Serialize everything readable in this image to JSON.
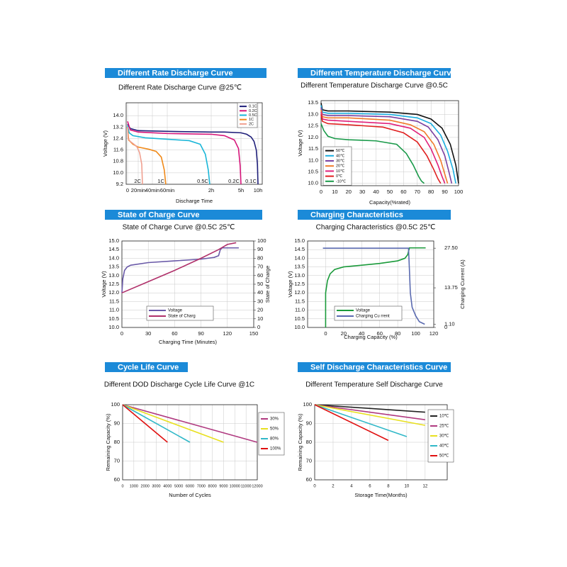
{
  "chart_data": [
    {
      "type": "line",
      "title": "Different Rate Discharge Curve",
      "subtitle": "Different Rate Discharge Curve @25℃",
      "xlabel": "Discharge Time",
      "ylabel": "Voltage (V)",
      "grid": true,
      "legend": "top-right",
      "end_labels": true,
      "ylim": [
        9.2,
        14.9
      ],
      "yticks": [
        9.2,
        {
          "value": 10.0,
          "label": "10.0"
        },
        10.8,
        11.6,
        12.4,
        13.2,
        {
          "value": 14.0,
          "label": "14.0"
        }
      ],
      "xlim": [
        0,
        600
      ],
      "xticks": [
        0,
        {
          "value": 20,
          "label": "20min"
        },
        {
          "value": 40,
          "label": "40min"
        },
        {
          "value": 60,
          "label": "60min"
        },
        {
          "value": 120,
          "label": "2h"
        },
        {
          "value": 300,
          "label": "5h"
        },
        {
          "value": 600,
          "label": "10h"
        }
      ],
      "series": [
        {
          "name": "0.1C",
          "color": "#1f1f7a",
          "x": [
            0,
            5,
            20,
            60,
            120,
            200,
            300,
            400,
            480,
            530,
            570,
            590,
            600
          ],
          "values": [
            13.4,
            13.1,
            12.95,
            12.9,
            12.85,
            12.85,
            12.8,
            12.7,
            12.5,
            12.2,
            11.6,
            10.6,
            9.2
          ]
        },
        {
          "name": "0.2C",
          "color": "#d6157a",
          "x": [
            0,
            5,
            20,
            60,
            120,
            200,
            260,
            285,
            295,
            300
          ],
          "values": [
            13.6,
            13.0,
            12.85,
            12.75,
            12.7,
            12.6,
            12.3,
            11.7,
            10.5,
            9.2
          ]
        },
        {
          "name": "0.5C",
          "color": "#19b6d8",
          "x": [
            0,
            3,
            10,
            30,
            60,
            90,
            105,
            112,
            116,
            118
          ],
          "values": [
            13.3,
            12.8,
            12.6,
            12.45,
            12.35,
            12.25,
            12.0,
            11.3,
            10.2,
            9.2
          ]
        },
        {
          "name": "1C",
          "color": "#f08a1a",
          "x": [
            0,
            2,
            10,
            20,
            35,
            45,
            52,
            56,
            58
          ],
          "values": [
            13.2,
            12.3,
            12.0,
            11.8,
            11.65,
            11.5,
            11.1,
            10.2,
            9.2
          ]
        },
        {
          "name": "2C",
          "color": "#f0a090",
          "x": [
            0,
            1,
            5,
            12,
            18,
            22,
            25,
            26
          ],
          "values": [
            13.2,
            12.4,
            12.2,
            12.0,
            11.8,
            11.4,
            10.6,
            9.2
          ]
        }
      ]
    },
    {
      "type": "line",
      "title": "Different Temperature Discharge Curve",
      "subtitle": "Different Temperature Discharge Curve @0.5C",
      "xlabel": "Capacity(%rated)",
      "ylabel": "Voltage (V)",
      "grid": true,
      "legend": "bottom-left",
      "ylim": [
        9.9,
        13.6
      ],
      "yticks": [
        {
          "value": 10.0,
          "label": "10.0"
        },
        10.5,
        {
          "value": 11.0,
          "label": "11.0"
        },
        11.5,
        {
          "value": 12.0,
          "label": "12.0"
        },
        12.5,
        {
          "value": 13.0,
          "label": "13.0"
        },
        13.5
      ],
      "xlim": [
        0,
        100
      ],
      "xticks": [
        0,
        10,
        20,
        30,
        40,
        50,
        60,
        70,
        80,
        90,
        100
      ],
      "series": [
        {
          "name": "50℃",
          "color": "#111111",
          "x": [
            0,
            1,
            5,
            20,
            50,
            70,
            80,
            88,
            94,
            98,
            100
          ],
          "values": [
            13.5,
            13.2,
            13.15,
            13.15,
            13.1,
            13.0,
            12.8,
            12.4,
            11.7,
            10.8,
            10.0
          ]
        },
        {
          "name": "40℃",
          "color": "#1aaee0",
          "x": [
            0,
            1,
            5,
            20,
            50,
            70,
            80,
            87,
            92,
            96,
            98
          ],
          "values": [
            13.4,
            13.1,
            13.05,
            13.05,
            13.0,
            12.85,
            12.6,
            12.1,
            11.4,
            10.6,
            10.0
          ]
        },
        {
          "name": "30℃",
          "color": "#7a3fa0",
          "x": [
            0,
            1,
            5,
            20,
            50,
            70,
            78,
            85,
            90,
            93,
            95
          ],
          "values": [
            13.3,
            13.0,
            12.95,
            12.95,
            12.9,
            12.7,
            12.45,
            11.9,
            11.2,
            10.5,
            10.0
          ]
        },
        {
          "name": "20℃",
          "color": "#f07a2a",
          "x": [
            0,
            1,
            5,
            20,
            50,
            65,
            75,
            82,
            87,
            90,
            92
          ],
          "values": [
            13.2,
            12.9,
            12.85,
            12.85,
            12.75,
            12.55,
            12.25,
            11.7,
            11.0,
            10.4,
            10.0
          ]
        },
        {
          "name": "10℃",
          "color": "#e0207a",
          "x": [
            0,
            1,
            5,
            20,
            50,
            65,
            75,
            80,
            85,
            88,
            90
          ],
          "values": [
            13.1,
            12.8,
            12.75,
            12.7,
            12.6,
            12.4,
            12.0,
            11.5,
            10.8,
            10.3,
            10.0
          ]
        },
        {
          "name": "0℃",
          "color": "#e02020",
          "x": [
            0,
            1,
            5,
            20,
            45,
            60,
            70,
            77,
            82,
            85,
            87
          ],
          "values": [
            13.0,
            12.7,
            12.6,
            12.55,
            12.45,
            12.2,
            11.8,
            11.2,
            10.6,
            10.2,
            10.0
          ]
        },
        {
          "name": "-10℃",
          "color": "#1a9a4a",
          "x": [
            0,
            2,
            5,
            10,
            20,
            40,
            55,
            62,
            67,
            71,
            73,
            75
          ],
          "values": [
            12.6,
            12.3,
            12.05,
            11.95,
            11.9,
            11.85,
            11.7,
            11.3,
            10.8,
            10.3,
            10.1,
            10.0
          ]
        }
      ]
    },
    {
      "type": "line",
      "title": "State of Charge Curve",
      "subtitle": "State of Charge Curve @0.5C 25℃",
      "xlabel": "Charging Time (Minutes)",
      "ylabel": "Voltage (V)",
      "y2label": "State of Charge",
      "grid": true,
      "legend": "bottom",
      "ylim": [
        10.0,
        15.0
      ],
      "yticks": [
        {
          "value": 10.0,
          "label": "10.0"
        },
        10.5,
        {
          "value": 11.0,
          "label": "11.0"
        },
        11.5,
        {
          "value": 12.0,
          "label": "12.0"
        },
        12.5,
        {
          "value": 13.0,
          "label": "13.0"
        },
        13.5,
        {
          "value": 14.0,
          "label": "14.0"
        },
        14.5,
        {
          "value": 15.0,
          "label": "15.0"
        }
      ],
      "y2lim": [
        0,
        100
      ],
      "y2ticks": [
        0,
        10,
        20,
        30,
        40,
        50,
        60,
        70,
        80,
        90,
        100
      ],
      "xlim": [
        0,
        150
      ],
      "xticks": [
        0,
        30,
        60,
        90,
        120,
        150
      ],
      "series": [
        {
          "name": "Voltage",
          "color": "#6a5aa8",
          "x": [
            0,
            1,
            3,
            6,
            10,
            30,
            60,
            90,
            105,
            110,
            112,
            114,
            133
          ],
          "values": [
            12.0,
            12.8,
            13.3,
            13.5,
            13.6,
            13.75,
            13.85,
            13.95,
            14.05,
            14.15,
            14.5,
            14.6,
            14.6
          ]
        },
        {
          "name": "State of Charg",
          "color": "#b0306a",
          "axis": "y2",
          "x": [
            0,
            30,
            60,
            90,
            110,
            120,
            130
          ],
          "values": [
            40,
            53,
            66,
            80,
            90,
            96,
            98
          ]
        }
      ]
    },
    {
      "type": "line",
      "title": "Charging Characteristics",
      "subtitle": "Charging Characteristics @0.5C 25℃",
      "xlabel": "Charging Capacity (%)",
      "ylabel": "Voltage (V)",
      "y2label": "Charging Current (A)",
      "grid": true,
      "legend": "bottom",
      "ylim": [
        10.0,
        15.0
      ],
      "yticks": [
        {
          "value": 10.0,
          "label": "10.0"
        },
        10.5,
        {
          "value": 11.0,
          "label": "11.0"
        },
        11.5,
        {
          "value": 12.0,
          "label": "12.0"
        },
        12.5,
        {
          "value": 13.0,
          "label": "13.0"
        },
        13.5,
        {
          "value": 14.0,
          "label": "14.0"
        },
        14.5,
        {
          "value": 15.0,
          "label": "15.0"
        }
      ],
      "y2lim": [
        0,
        30
      ],
      "y2ticks": [
        0,
        {
          "value": 1.1,
          "label": "1.10"
        },
        13.75,
        {
          "value": 27.5,
          "label": "27.50"
        }
      ],
      "xlim": [
        -20,
        120
      ],
      "xticks": [
        0,
        20,
        40,
        60,
        80,
        100,
        120
      ],
      "series": [
        {
          "name": "Voltage",
          "color": "#1a9a3a",
          "x": [
            0,
            0,
            2,
            5,
            10,
            20,
            40,
            60,
            80,
            88,
            91,
            92,
            93,
            111
          ],
          "values": [
            10.0,
            12.0,
            12.7,
            13.1,
            13.35,
            13.5,
            13.6,
            13.7,
            13.85,
            14.0,
            14.2,
            14.4,
            14.6,
            14.6
          ]
        },
        {
          "name": "Charging Cu rrent",
          "color": "#5a6ab0",
          "axis": "y2",
          "x": [
            -3,
            92,
            93,
            94,
            96,
            100,
            104,
            110
          ],
          "values": [
            27.5,
            27.5,
            20,
            12,
            7,
            4,
            2,
            1.1
          ]
        }
      ]
    },
    {
      "type": "line",
      "title": "Cycle Life Curve",
      "subtitle": "Different DOD Discharge Cycle Life Curve @1C",
      "xlabel": "Number of Cycles",
      "ylabel": "Remaining Capacity (%)",
      "grid": true,
      "legend": "right",
      "ylim": [
        60,
        100
      ],
      "yticks": [
        60,
        70,
        80,
        90,
        100
      ],
      "xlim": [
        0,
        12000
      ],
      "xticks": [
        0,
        1000,
        2000,
        3000,
        4000,
        5000,
        6000,
        7000,
        8000,
        9000,
        10000,
        11000,
        12000
      ],
      "series": [
        {
          "name": "30%",
          "color": "#b03a80",
          "x": [
            0,
            12000
          ],
          "values": [
            100,
            80
          ]
        },
        {
          "name": "50%",
          "color": "#e8e020",
          "x": [
            0,
            9000
          ],
          "values": [
            100,
            80
          ]
        },
        {
          "name": "80%",
          "color": "#30b8c8",
          "x": [
            0,
            6000
          ],
          "values": [
            100,
            80
          ]
        },
        {
          "name": "100%",
          "color": "#e01010",
          "x": [
            0,
            4000
          ],
          "values": [
            100,
            80
          ]
        }
      ]
    },
    {
      "type": "line",
      "title": "Self Discharge Characteristics Curve",
      "subtitle": "Different Temperature Self Discharge Curve",
      "xlabel": "Storage Time(Months)",
      "ylabel": "Remaining Capacity (%)",
      "grid": true,
      "legend": "right",
      "ylim": [
        60,
        100
      ],
      "yticks": [
        60,
        70,
        80,
        90,
        100
      ],
      "xlim": [
        0,
        14.4
      ],
      "xticks": [
        0,
        2,
        4,
        6,
        8,
        10,
        12
      ],
      "series": [
        {
          "name": "10℃",
          "color": "#222222",
          "x": [
            0,
            12
          ],
          "values": [
            100,
            96
          ]
        },
        {
          "name": "25℃",
          "color": "#b03a80",
          "x": [
            0,
            12
          ],
          "values": [
            100,
            92
          ]
        },
        {
          "name": "30℃",
          "color": "#e8e020",
          "x": [
            0,
            12
          ],
          "values": [
            100,
            89
          ]
        },
        {
          "name": "40℃",
          "color": "#30b8c8",
          "x": [
            0,
            10
          ],
          "values": [
            100,
            83
          ]
        },
        {
          "name": "50℃",
          "color": "#e01010",
          "x": [
            0,
            8
          ],
          "values": [
            100,
            81
          ]
        }
      ]
    }
  ]
}
